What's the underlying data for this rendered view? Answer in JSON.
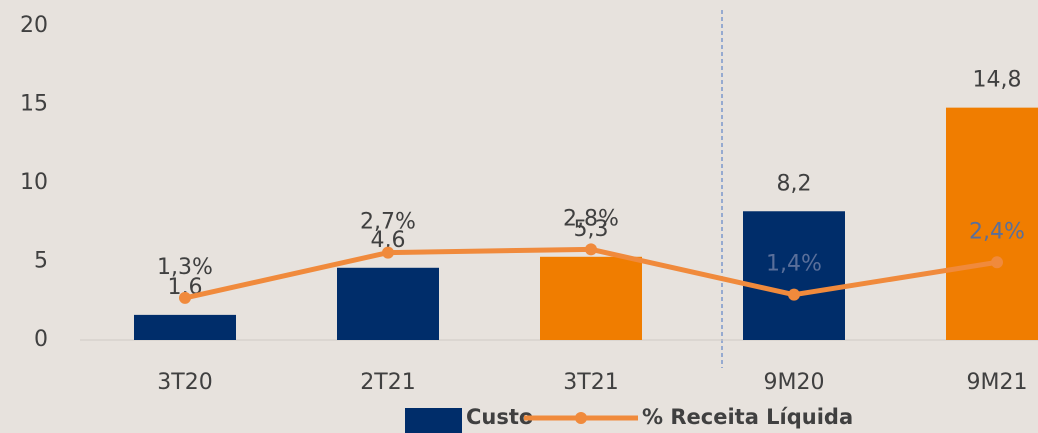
{
  "chart_data": {
    "type": "bar",
    "categories": [
      "3T20",
      "2T21",
      "3T21",
      "9M20",
      "9M21"
    ],
    "series": [
      {
        "name": "Custo",
        "type": "bar",
        "color": "#002d6a",
        "colors": [
          "#002d6a",
          "#002d6a",
          "#f07d00",
          "#002d6a",
          "#f07d00"
        ],
        "values": [
          1.6,
          4.6,
          5.3,
          8.2,
          14.8
        ],
        "value_labels": [
          "1,6",
          "4,6",
          "5,3",
          "8,2",
          "14,8"
        ]
      },
      {
        "name": "% Receita Líquida",
        "type": "line",
        "axis": "y2",
        "color": "#f08a3c",
        "values": [
          1.3,
          2.7,
          2.8,
          1.4,
          2.4
        ],
        "value_labels": [
          "1,3%",
          "2,7%",
          "2,8%",
          "1,4%",
          "2,4%"
        ]
      }
    ],
    "ylim": [
      0,
      20
    ],
    "yticks": [
      0,
      5,
      10,
      15,
      20
    ],
    "y2lim": [
      0,
      9.7
    ],
    "grid": false
  }
}
